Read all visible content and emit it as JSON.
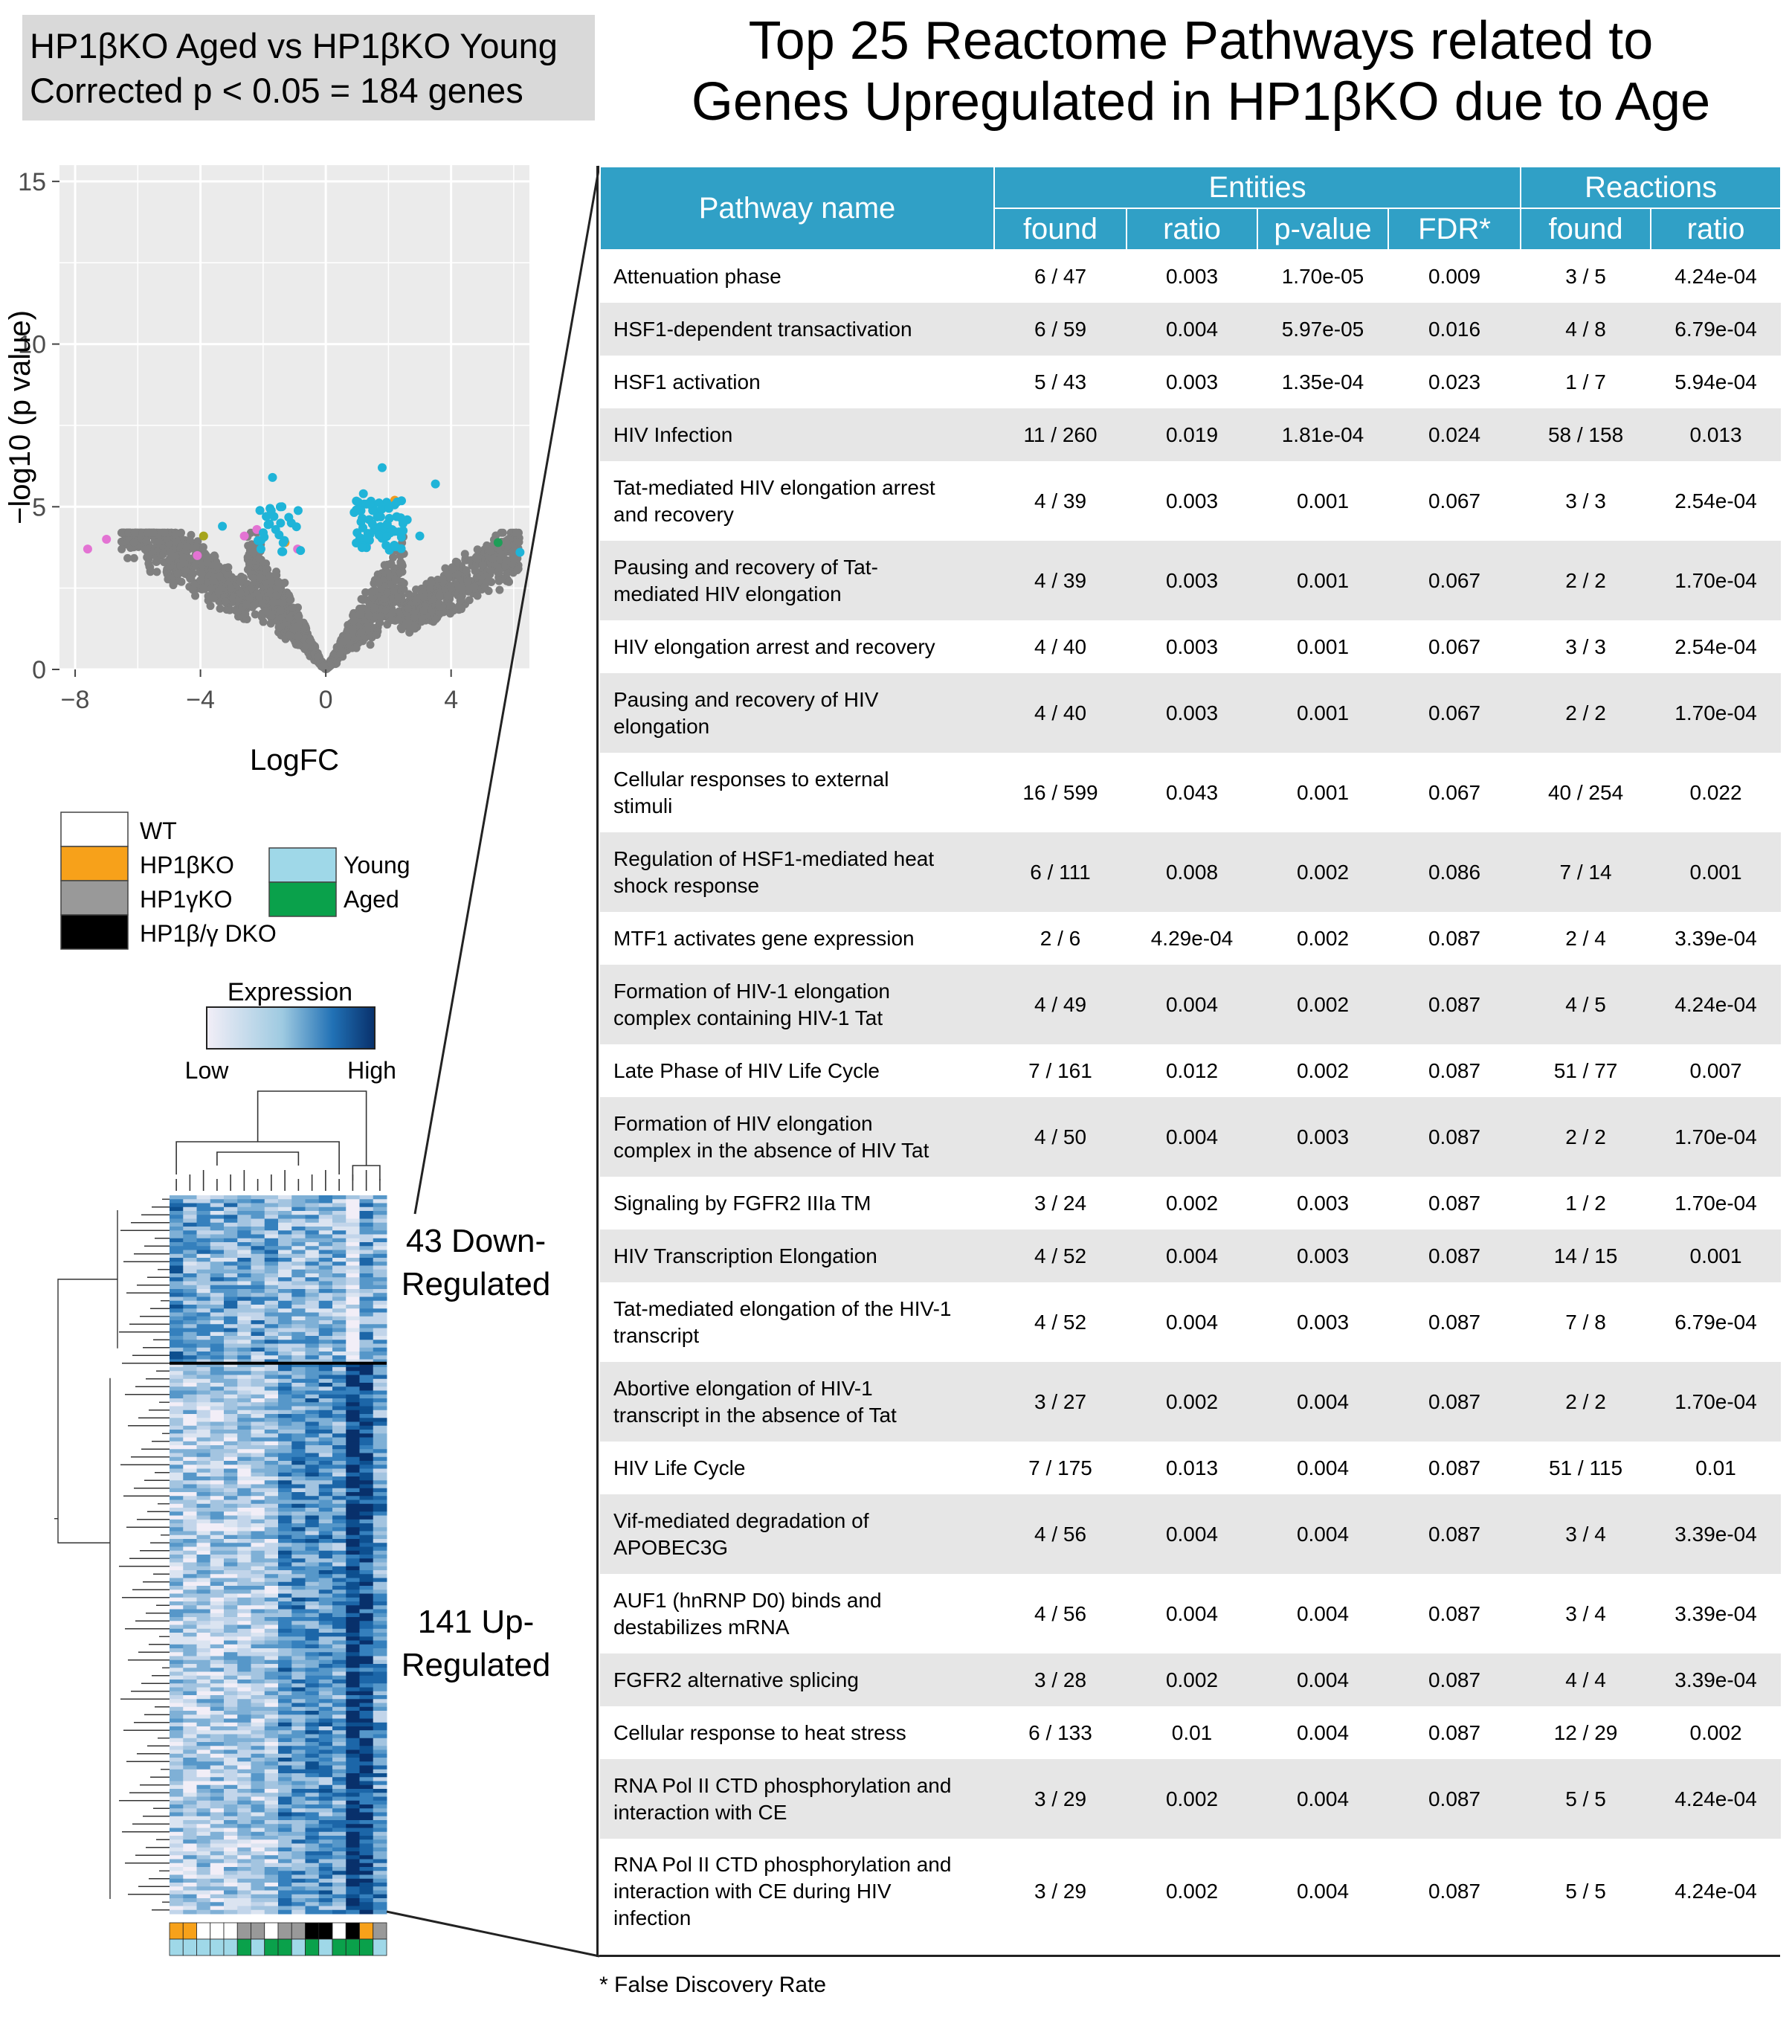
{
  "header": {
    "line1": "HP1βKO Aged vs HP1βKO Young",
    "line2": "Corrected p < 0.05 = 184 genes"
  },
  "title": {
    "line1": "Top 25 Reactome Pathways related to",
    "line2": "Genes Upregulated in HP1βKO due to Age"
  },
  "colors": {
    "gray_point": "#7f7f7f",
    "sig_point": "#1fb4d8",
    "table_header": "#30a0c6",
    "row_alt": "#e6e6e6",
    "wt": "#ffffff",
    "hp1b_ko": "#f7a11a",
    "hp1g_ko": "#999999",
    "dko": "#000000",
    "young": "#9fd8e8",
    "aged": "#0aa14b",
    "expr_low": "#f2eef7",
    "expr_high": "#08306b"
  },
  "chart_data": [
    {
      "type": "scatter",
      "xlabel": "LogFC",
      "ylabel": "−log10 (p value)",
      "xlim": [
        -8.5,
        6.5
      ],
      "ylim": [
        0,
        15.5
      ],
      "xticks": [
        "−8",
        "−4",
        "0",
        "4"
      ],
      "xtick_values": [
        -8,
        -4,
        0,
        4
      ],
      "yticks": [
        "0",
        "5",
        "10",
        "15"
      ],
      "ytick_values": [
        0,
        5,
        10,
        15
      ],
      "grid": true,
      "highlighted_points": [
        {
          "x": -7.6,
          "y": 3.7,
          "color": "pink"
        },
        {
          "x": -7.0,
          "y": 4.0,
          "color": "pink"
        },
        {
          "x": -3.9,
          "y": 4.1,
          "color": "olive"
        },
        {
          "x": -4.1,
          "y": 3.5,
          "color": "pink"
        },
        {
          "x": -3.3,
          "y": 4.4,
          "color": "cyan"
        },
        {
          "x": -2.6,
          "y": 4.1,
          "color": "pink"
        },
        {
          "x": -2.2,
          "y": 4.3,
          "color": "pink"
        },
        {
          "x": -1.9,
          "y": 4.7,
          "color": "cyan"
        },
        {
          "x": -1.6,
          "y": 4.3,
          "color": "cyan"
        },
        {
          "x": -1.4,
          "y": 5.0,
          "color": "cyan"
        },
        {
          "x": -1.3,
          "y": 3.9,
          "color": "orange"
        },
        {
          "x": -1.1,
          "y": 4.5,
          "color": "cyan"
        },
        {
          "x": -0.9,
          "y": 3.7,
          "color": "pink"
        },
        {
          "x": -1.7,
          "y": 5.9,
          "color": "cyan"
        },
        {
          "x": 1.2,
          "y": 5.4,
          "color": "cyan"
        },
        {
          "x": 1.5,
          "y": 5.0,
          "color": "cyan"
        },
        {
          "x": 1.8,
          "y": 6.2,
          "color": "cyan"
        },
        {
          "x": 2.2,
          "y": 5.2,
          "color": "orange"
        },
        {
          "x": 2.6,
          "y": 4.6,
          "color": "cyan"
        },
        {
          "x": 3.5,
          "y": 5.7,
          "color": "cyan"
        },
        {
          "x": 3.0,
          "y": 4.1,
          "color": "cyan"
        },
        {
          "x": 1.0,
          "y": 4.2,
          "color": "cyan"
        },
        {
          "x": 1.3,
          "y": 3.8,
          "color": "pink"
        },
        {
          "x": 5.5,
          "y": 3.9,
          "color": "green"
        },
        {
          "x": 6.2,
          "y": 3.6,
          "color": "cyan"
        }
      ]
    },
    {
      "type": "heatmap",
      "legend_title": "Expression",
      "legend_low": "Low",
      "legend_high": "High",
      "columns": 16,
      "row_groups": [
        {
          "label_line1": "43 Down-",
          "label_line2": "Regulated",
          "rows": 43
        },
        {
          "label_line1": "141 Up-",
          "label_line2": "Regulated",
          "rows": 141
        }
      ],
      "genotype_annotation": [
        "HP1βKO",
        "HP1βKO",
        "WT",
        "WT",
        "WT",
        "HP1γKO",
        "HP1γKO",
        "WT",
        "HP1γKO",
        "HP1γKO",
        "HP1β/γ DKO",
        "HP1β/γ DKO",
        "WT",
        "HP1β/γ DKO",
        "HP1βKO",
        "HP1γKO"
      ],
      "age_annotation": [
        "Young",
        "Young",
        "Young",
        "Young",
        "Young",
        "Aged",
        "Young",
        "Aged",
        "Aged",
        "Young",
        "Aged",
        "Young",
        "Aged",
        "Aged",
        "Aged",
        "Young"
      ]
    }
  ],
  "legend": {
    "genotypes": [
      {
        "label": "WT",
        "color_key": "wt"
      },
      {
        "label": "HP1βKO",
        "color_key": "hp1b_ko"
      },
      {
        "label": "HP1γKO",
        "color_key": "hp1g_ko"
      },
      {
        "label": "HP1β/γ DKO",
        "color_key": "dko"
      }
    ],
    "ages": [
      {
        "label": "Young",
        "color_key": "young"
      },
      {
        "label": "Aged",
        "color_key": "aged"
      }
    ]
  },
  "table": {
    "header": {
      "pathway_name": "Pathway name",
      "entities": "Entities",
      "reactions": "Reactions",
      "cols": [
        "found",
        "ratio",
        "p-value",
        "FDR*",
        "found",
        "ratio"
      ]
    },
    "rows": [
      {
        "name": [
          "Attenuation phase"
        ],
        "e_found": "6 / 47",
        "e_ratio": "0.003",
        "p": "1.70e-05",
        "fdr": "0.009",
        "r_found": "3 / 5",
        "r_ratio": "4.24e-04"
      },
      {
        "name": [
          "HSF1-dependent transactivation"
        ],
        "e_found": "6 / 59",
        "e_ratio": "0.004",
        "p": "5.97e-05",
        "fdr": "0.016",
        "r_found": "4 / 8",
        "r_ratio": "6.79e-04"
      },
      {
        "name": [
          "HSF1 activation"
        ],
        "e_found": "5 / 43",
        "e_ratio": "0.003",
        "p": "1.35e-04",
        "fdr": "0.023",
        "r_found": "1 / 7",
        "r_ratio": "5.94e-04"
      },
      {
        "name": [
          "HIV Infection"
        ],
        "e_found": "11 / 260",
        "e_ratio": "0.019",
        "p": "1.81e-04",
        "fdr": "0.024",
        "r_found": "58 / 158",
        "r_ratio": "0.013"
      },
      {
        "name": [
          "Tat-mediated HIV elongation arrest",
          "and recovery"
        ],
        "e_found": "4 / 39",
        "e_ratio": "0.003",
        "p": "0.001",
        "fdr": "0.067",
        "r_found": "3 / 3",
        "r_ratio": "2.54e-04"
      },
      {
        "name": [
          "Pausing and recovery of Tat-",
          "mediated HIV elongation"
        ],
        "e_found": "4 / 39",
        "e_ratio": "0.003",
        "p": "0.001",
        "fdr": "0.067",
        "r_found": "2 / 2",
        "r_ratio": "1.70e-04"
      },
      {
        "name": [
          "HIV elongation arrest and recovery"
        ],
        "e_found": "4 / 40",
        "e_ratio": "0.003",
        "p": "0.001",
        "fdr": "0.067",
        "r_found": "3 / 3",
        "r_ratio": "2.54e-04"
      },
      {
        "name": [
          "Pausing and recovery of HIV",
          "elongation"
        ],
        "e_found": "4 / 40",
        "e_ratio": "0.003",
        "p": "0.001",
        "fdr": "0.067",
        "r_found": "2 / 2",
        "r_ratio": "1.70e-04"
      },
      {
        "name": [
          "Cellular responses to external",
          "stimuli"
        ],
        "e_found": "16 / 599",
        "e_ratio": "0.043",
        "p": "0.001",
        "fdr": "0.067",
        "r_found": "40 / 254",
        "r_ratio": "0.022"
      },
      {
        "name": [
          "Regulation of HSF1-mediated heat",
          "shock response"
        ],
        "e_found": "6 / 111",
        "e_ratio": "0.008",
        "p": "0.002",
        "fdr": "0.086",
        "r_found": "7 / 14",
        "r_ratio": "0.001"
      },
      {
        "name": [
          "MTF1 activates gene expression"
        ],
        "e_found": "2 / 6",
        "e_ratio": "4.29e-04",
        "p": "0.002",
        "fdr": "0.087",
        "r_found": "2 / 4",
        "r_ratio": "3.39e-04"
      },
      {
        "name": [
          "Formation of HIV-1 elongation",
          "complex containing HIV-1 Tat"
        ],
        "e_found": "4 / 49",
        "e_ratio": "0.004",
        "p": "0.002",
        "fdr": "0.087",
        "r_found": "4 / 5",
        "r_ratio": "4.24e-04"
      },
      {
        "name": [
          "Late Phase of HIV Life Cycle"
        ],
        "e_found": "7 / 161",
        "e_ratio": "0.012",
        "p": "0.002",
        "fdr": "0.087",
        "r_found": "51 / 77",
        "r_ratio": "0.007"
      },
      {
        "name": [
          "Formation of HIV elongation",
          "complex in the absence of HIV Tat"
        ],
        "e_found": "4 / 50",
        "e_ratio": "0.004",
        "p": "0.003",
        "fdr": "0.087",
        "r_found": "2 / 2",
        "r_ratio": "1.70e-04"
      },
      {
        "name": [
          "Signaling by FGFR2 IIIa TM"
        ],
        "e_found": "3 / 24",
        "e_ratio": "0.002",
        "p": "0.003",
        "fdr": "0.087",
        "r_found": "1 / 2",
        "r_ratio": "1.70e-04"
      },
      {
        "name": [
          "HIV Transcription Elongation"
        ],
        "e_found": "4 / 52",
        "e_ratio": "0.004",
        "p": "0.003",
        "fdr": "0.087",
        "r_found": "14 / 15",
        "r_ratio": "0.001"
      },
      {
        "name": [
          "Tat-mediated elongation of the HIV-1",
          "transcript"
        ],
        "e_found": "4 / 52",
        "e_ratio": "0.004",
        "p": "0.003",
        "fdr": "0.087",
        "r_found": "7 / 8",
        "r_ratio": "6.79e-04"
      },
      {
        "name": [
          "Abortive elongation of HIV-1",
          "transcript in the absence of Tat"
        ],
        "e_found": "3 / 27",
        "e_ratio": "0.002",
        "p": "0.004",
        "fdr": "0.087",
        "r_found": "2 / 2",
        "r_ratio": "1.70e-04"
      },
      {
        "name": [
          "HIV Life Cycle"
        ],
        "e_found": "7 / 175",
        "e_ratio": "0.013",
        "p": "0.004",
        "fdr": "0.087",
        "r_found": "51 / 115",
        "r_ratio": "0.01"
      },
      {
        "name": [
          "Vif-mediated degradation of",
          "APOBEC3G"
        ],
        "e_found": "4 / 56",
        "e_ratio": "0.004",
        "p": "0.004",
        "fdr": "0.087",
        "r_found": "3 / 4",
        "r_ratio": "3.39e-04"
      },
      {
        "name": [
          "AUF1 (hnRNP D0) binds and",
          "destabilizes mRNA"
        ],
        "e_found": "4 / 56",
        "e_ratio": "0.004",
        "p": "0.004",
        "fdr": "0.087",
        "r_found": "3 / 4",
        "r_ratio": "3.39e-04"
      },
      {
        "name": [
          "FGFR2 alternative splicing"
        ],
        "e_found": "3 / 28",
        "e_ratio": "0.002",
        "p": "0.004",
        "fdr": "0.087",
        "r_found": "4 / 4",
        "r_ratio": "3.39e-04"
      },
      {
        "name": [
          "Cellular response to heat stress"
        ],
        "e_found": "6 / 133",
        "e_ratio": "0.01",
        "p": "0.004",
        "fdr": "0.087",
        "r_found": "12 / 29",
        "r_ratio": "0.002"
      },
      {
        "name": [
          "RNA Pol II CTD phosphorylation and",
          "interaction with CE"
        ],
        "e_found": "3 / 29",
        "e_ratio": "0.002",
        "p": "0.004",
        "fdr": "0.087",
        "r_found": "5 / 5",
        "r_ratio": "4.24e-04"
      },
      {
        "name": [
          "RNA Pol II CTD phosphorylation and",
          "interaction with CE during HIV",
          "infection"
        ],
        "e_found": "3 / 29",
        "e_ratio": "0.002",
        "p": "0.004",
        "fdr": "0.087",
        "r_found": "5 / 5",
        "r_ratio": "4.24e-04"
      }
    ],
    "footnote": "* False Discovery Rate"
  }
}
